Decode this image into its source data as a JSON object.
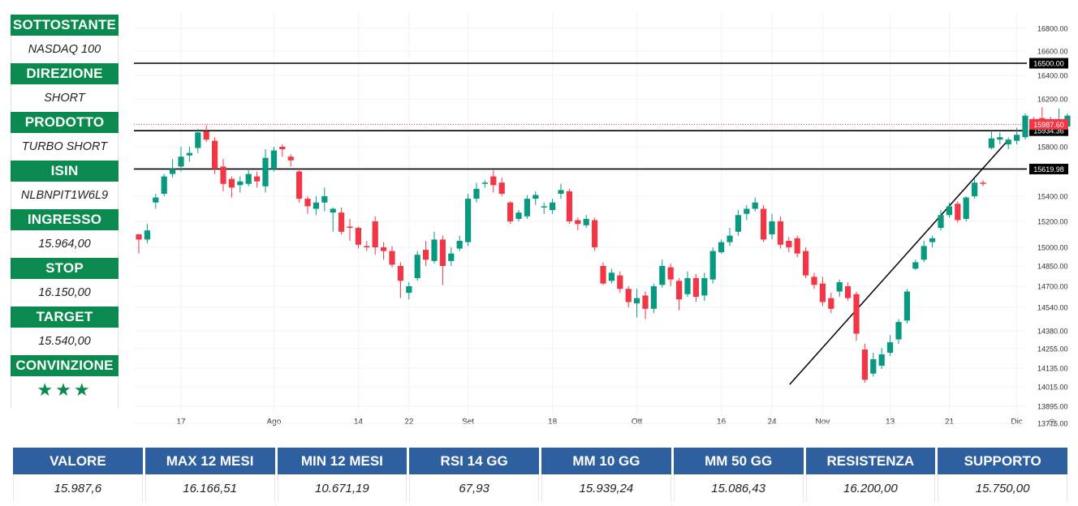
{
  "sidebar": {
    "items": [
      {
        "label": "SOTTOSTANTE",
        "value": "NASDAQ 100"
      },
      {
        "label": "DIREZIONE",
        "value": "SHORT"
      },
      {
        "label": "PRODOTTO",
        "value": "TURBO SHORT"
      },
      {
        "label": "ISIN",
        "value": "NLBNPIT1W6L9"
      },
      {
        "label": "INGRESSO",
        "value": "15.964,00"
      },
      {
        "label": "STOP",
        "value": "16.150,00"
      },
      {
        "label": "TARGET",
        "value": "15.540,00"
      },
      {
        "label": "CONVINZIONE",
        "value": "★★★"
      }
    ]
  },
  "stats": {
    "headers": [
      "VALORE",
      "MAX 12 MESI",
      "MIN 12 MESI",
      "RSI 14 GG",
      "MM 10 GG",
      "MM 50 GG",
      "RESISTENZA",
      "SUPPORTO"
    ],
    "values": [
      "15.987,6",
      "16.166,51",
      "10.671,19",
      "67,93",
      "15.939,24",
      "15.086,43",
      "16.200,00",
      "15.750,00"
    ]
  },
  "colors": {
    "sidebar_header": "#0b8a4f",
    "table_header": "#2e5f9e",
    "candle_up": "#089981",
    "candle_down": "#f23645"
  },
  "chart_data": {
    "type": "candlestick",
    "y_ticks": [
      "16800.00",
      "16600.00",
      "16400.00",
      "16200.00",
      "15800.00",
      "15400.00",
      "15200.00",
      "15000.00",
      "14850.00",
      "14700.00",
      "14540.00",
      "14380.00",
      "14255.00",
      "14135.00",
      "14015.00",
      "13895.00",
      "13775.00"
    ],
    "x_ticks": [
      "17",
      "Ago",
      "14",
      "22",
      "Set",
      "18",
      "Ott",
      "16",
      "24",
      "Nov",
      "13",
      "21",
      "Dic"
    ],
    "levels": [
      {
        "value": 16500.0,
        "label": "16500.00"
      },
      {
        "value": 15934.36,
        "label": "15934.36"
      },
      {
        "value": 15619.98,
        "label": "15619.98"
      }
    ],
    "last_price": {
      "value": 15987.6,
      "label": "15987.60"
    },
    "trendline": {
      "from": {
        "date": "2023-10-26",
        "value": 14030
      },
      "to": {
        "date": "2023-11-30",
        "value": 15850
      }
    },
    "candles": [
      [
        15100,
        15060,
        15080,
        14950
      ],
      [
        15060,
        15130,
        15180,
        15030
      ],
      [
        15350,
        15390,
        15420,
        15300
      ],
      [
        15420,
        15560,
        15580,
        15400
      ],
      [
        15580,
        15620,
        15700,
        15550
      ],
      [
        15640,
        15720,
        15800,
        15600
      ],
      [
        15730,
        15750,
        15800,
        15680
      ],
      [
        15790,
        15920,
        15950,
        15750
      ],
      [
        15930,
        15860,
        15980,
        15840
      ],
      [
        15850,
        15620,
        15880,
        15580
      ],
      [
        15640,
        15500,
        15700,
        15440
      ],
      [
        15540,
        15470,
        15560,
        15390
      ],
      [
        15490,
        15520,
        15560,
        15430
      ],
      [
        15500,
        15580,
        15630,
        15480
      ],
      [
        15560,
        15520,
        15600,
        15470
      ],
      [
        15480,
        15710,
        15780,
        15430
      ],
      [
        15620,
        15770,
        15800,
        15600
      ],
      [
        15800,
        15780,
        15820,
        15720
      ],
      [
        15720,
        15690,
        15740,
        15640
      ],
      [
        15600,
        15380,
        15610,
        15350
      ],
      [
        15380,
        15320,
        15400,
        15260
      ],
      [
        15300,
        15350,
        15400,
        15250
      ],
      [
        15350,
        15400,
        15470,
        15280
      ],
      [
        15270,
        15300,
        15310,
        15120
      ],
      [
        15270,
        15120,
        15310,
        15100
      ],
      [
        15160,
        15150,
        15220,
        15050
      ],
      [
        15150,
        15020,
        15160,
        14990
      ],
      [
        15010,
        15000,
        15050,
        14970
      ],
      [
        15200,
        15000,
        15240,
        14940
      ],
      [
        15000,
        14970,
        15040,
        14900
      ],
      [
        14970,
        14860,
        15010,
        14840
      ],
      [
        14850,
        14740,
        14880,
        14610
      ],
      [
        14650,
        14700,
        14730,
        14600
      ],
      [
        14760,
        14940,
        14970,
        14740
      ],
      [
        14980,
        14900,
        15050,
        14850
      ],
      [
        14890,
        15060,
        15120,
        14870
      ],
      [
        15060,
        14850,
        15090,
        14710
      ],
      [
        14890,
        14950,
        15000,
        14850
      ],
      [
        14990,
        15050,
        15090,
        14970
      ],
      [
        15040,
        15380,
        15420,
        15010
      ],
      [
        15380,
        15460,
        15510,
        15350
      ],
      [
        15500,
        15510,
        15530,
        15470
      ],
      [
        15560,
        15490,
        15610,
        15430
      ],
      [
        15510,
        15420,
        15550,
        15400
      ],
      [
        15350,
        15200,
        15360,
        15180
      ],
      [
        15220,
        15270,
        15290,
        15200
      ],
      [
        15240,
        15380,
        15410,
        15220
      ],
      [
        15380,
        15410,
        15440,
        15330
      ],
      [
        15320,
        15320,
        15350,
        15260
      ],
      [
        15290,
        15350,
        15380,
        15260
      ],
      [
        15420,
        15450,
        15500,
        15380
      ],
      [
        15440,
        15200,
        15460,
        15180
      ],
      [
        15210,
        15180,
        15230,
        15130
      ],
      [
        15170,
        15220,
        15250,
        15150
      ],
      [
        15210,
        15000,
        15230,
        14970
      ],
      [
        14850,
        14720,
        14880,
        14710
      ],
      [
        14740,
        14800,
        14830,
        14720
      ],
      [
        14780,
        14680,
        14810,
        14650
      ],
      [
        14680,
        14580,
        14700,
        14540
      ],
      [
        14570,
        14610,
        14680,
        14470
      ],
      [
        14630,
        14530,
        14660,
        14460
      ],
      [
        14530,
        14700,
        14720,
        14500
      ],
      [
        14710,
        14850,
        14900,
        14690
      ],
      [
        14840,
        14750,
        14870,
        14700
      ],
      [
        14740,
        14600,
        14760,
        14520
      ],
      [
        14640,
        14760,
        14810,
        14620
      ],
      [
        14760,
        14620,
        14790,
        14580
      ],
      [
        14630,
        14760,
        14800,
        14590
      ],
      [
        14750,
        14970,
        15000,
        14720
      ],
      [
        14960,
        15040,
        15060,
        14950
      ],
      [
        15040,
        15090,
        15150,
        15010
      ],
      [
        15120,
        15250,
        15290,
        15090
      ],
      [
        15260,
        15300,
        15330,
        15210
      ],
      [
        15300,
        15350,
        15390,
        15280
      ],
      [
        15300,
        15060,
        15330,
        15040
      ],
      [
        15100,
        15200,
        15260,
        15060
      ],
      [
        15200,
        15020,
        15240,
        14990
      ],
      [
        15050,
        15000,
        15080,
        14960
      ],
      [
        15070,
        14950,
        15090,
        14920
      ],
      [
        14970,
        14780,
        15000,
        14760
      ],
      [
        14770,
        14710,
        14800,
        14680
      ],
      [
        14720,
        14580,
        14770,
        14550
      ],
      [
        14610,
        14530,
        14650,
        14500
      ],
      [
        14660,
        14730,
        14750,
        14620
      ],
      [
        14700,
        14610,
        14730,
        14590
      ],
      [
        14640,
        14360,
        14660,
        14310
      ],
      [
        14250,
        14060,
        14290,
        14040
      ],
      [
        14100,
        14190,
        14230,
        14080
      ],
      [
        14150,
        14220,
        14260,
        14130
      ],
      [
        14230,
        14300,
        14350,
        14210
      ],
      [
        14320,
        14440,
        14460,
        14290
      ],
      [
        14450,
        14660,
        14680,
        14430
      ],
      [
        14830,
        14880,
        14900,
        14820
      ],
      [
        14900,
        15010,
        15050,
        14880
      ],
      [
        15040,
        15070,
        15090,
        15000
      ],
      [
        15150,
        15250,
        15290,
        15130
      ],
      [
        15250,
        15320,
        15350,
        15230
      ],
      [
        15340,
        15210,
        15360,
        15190
      ],
      [
        15220,
        15390,
        15400,
        15200
      ],
      [
        15400,
        15510,
        15540,
        15380
      ],
      [
        15510,
        15500,
        15530,
        15480
      ],
      [
        15790,
        15870,
        15930,
        15780
      ],
      [
        15860,
        15880,
        15920,
        15820
      ],
      [
        15820,
        15860,
        15880,
        15780
      ],
      [
        15850,
        15900,
        15960,
        15820
      ],
      [
        15880,
        16060,
        16080,
        15860
      ],
      [
        16000,
        15990,
        16050,
        15930
      ],
      [
        16040,
        15990,
        16130,
        15980
      ],
      [
        15990,
        15990,
        16050,
        15960
      ],
      [
        15980,
        16000,
        16120,
        15960
      ],
      [
        15970,
        16060,
        16080,
        15940
      ],
      [
        16110,
        15990,
        16160,
        15970
      ]
    ]
  }
}
